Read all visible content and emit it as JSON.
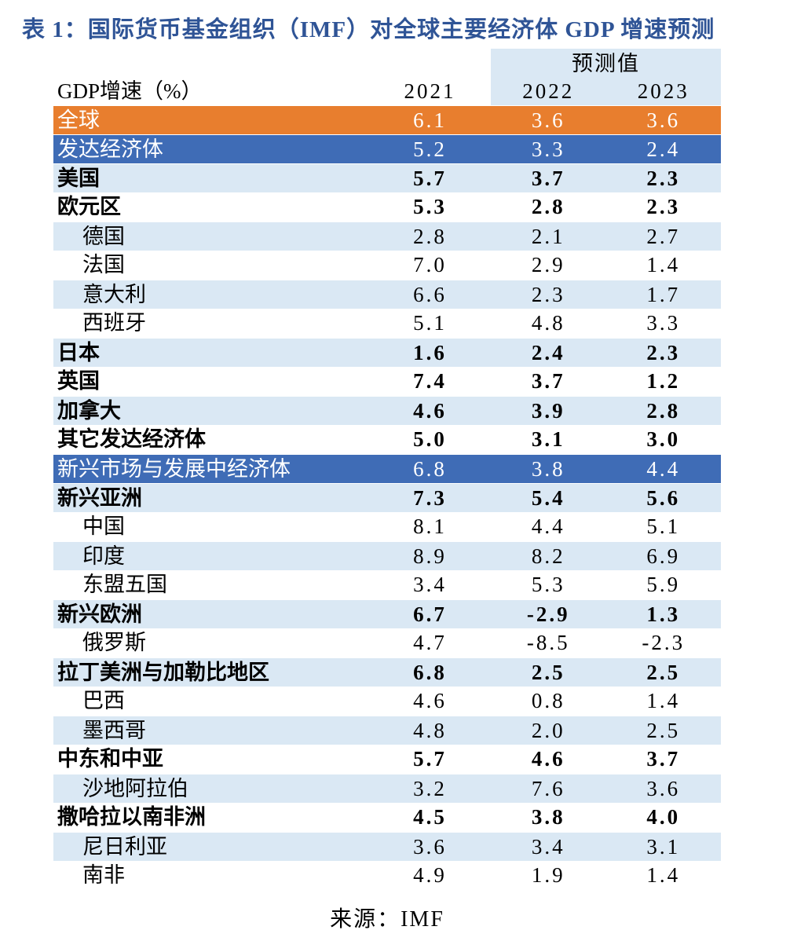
{
  "page": {
    "title": "表 1：国际货币基金组织（IMF）对全球主要经济体 GDP 增速预测",
    "source": "来源：IMF"
  },
  "colors": {
    "orange_band": "#E87E2E",
    "blue_band": "#3F6CB6",
    "light_blue_band": "#DAE8F4",
    "title_text": "#2F5496",
    "band_text_light": "#FFFFFF",
    "body_text": "#000000"
  },
  "chart_data": {
    "type": "table",
    "title": "表 1：国际货币基金组织（IMF）对全球主要经济体 GDP 增速预测",
    "source": "来源：IMF",
    "header": {
      "label_column": "GDP增速（%）",
      "forecast_group_label": "预测值",
      "forecast_years": [
        "2022",
        "2023"
      ],
      "years": [
        "2021",
        "2022",
        "2023"
      ]
    },
    "rows": [
      {
        "label": "全球",
        "values": [
          6.1,
          3.6,
          3.6
        ],
        "band": "orange",
        "bold": false,
        "indent": false
      },
      {
        "label": "发达经济体",
        "values": [
          5.2,
          3.3,
          2.4
        ],
        "band": "blue",
        "bold": false,
        "indent": false
      },
      {
        "label": "美国",
        "values": [
          5.7,
          3.7,
          2.3
        ],
        "band": "alt",
        "bold": true,
        "indent": false
      },
      {
        "label": "欧元区",
        "values": [
          5.3,
          2.8,
          2.3
        ],
        "band": "white",
        "bold": true,
        "indent": false
      },
      {
        "label": "德国",
        "values": [
          2.8,
          2.1,
          2.7
        ],
        "band": "alt",
        "bold": false,
        "indent": true
      },
      {
        "label": "法国",
        "values": [
          7.0,
          2.9,
          1.4
        ],
        "band": "white",
        "bold": false,
        "indent": true
      },
      {
        "label": "意大利",
        "values": [
          6.6,
          2.3,
          1.7
        ],
        "band": "alt",
        "bold": false,
        "indent": true
      },
      {
        "label": "西班牙",
        "values": [
          5.1,
          4.8,
          3.3
        ],
        "band": "white",
        "bold": false,
        "indent": true
      },
      {
        "label": "日本",
        "values": [
          1.6,
          2.4,
          2.3
        ],
        "band": "alt",
        "bold": true,
        "indent": false
      },
      {
        "label": "英国",
        "values": [
          7.4,
          3.7,
          1.2
        ],
        "band": "white",
        "bold": true,
        "indent": false
      },
      {
        "label": "加拿大",
        "values": [
          4.6,
          3.9,
          2.8
        ],
        "band": "alt",
        "bold": true,
        "indent": false
      },
      {
        "label": "其它发达经济体",
        "values": [
          5.0,
          3.1,
          3.0
        ],
        "band": "white",
        "bold": true,
        "indent": false
      },
      {
        "label": "新兴市场与发展中经济体",
        "values": [
          6.8,
          3.8,
          4.4
        ],
        "band": "blue",
        "bold": false,
        "indent": false
      },
      {
        "label": "新兴亚洲",
        "values": [
          7.3,
          5.4,
          5.6
        ],
        "band": "alt",
        "bold": true,
        "indent": false
      },
      {
        "label": "中国",
        "values": [
          8.1,
          4.4,
          5.1
        ],
        "band": "white",
        "bold": false,
        "indent": true
      },
      {
        "label": "印度",
        "values": [
          8.9,
          8.2,
          6.9
        ],
        "band": "alt",
        "bold": false,
        "indent": true
      },
      {
        "label": "东盟五国",
        "values": [
          3.4,
          5.3,
          5.9
        ],
        "band": "white",
        "bold": false,
        "indent": true
      },
      {
        "label": "新兴欧洲",
        "values": [
          6.7,
          -2.9,
          1.3
        ],
        "band": "alt",
        "bold": true,
        "indent": false
      },
      {
        "label": "俄罗斯",
        "values": [
          4.7,
          -8.5,
          -2.3
        ],
        "band": "white",
        "bold": false,
        "indent": true
      },
      {
        "label": "拉丁美洲与加勒比地区",
        "values": [
          6.8,
          2.5,
          2.5
        ],
        "band": "alt",
        "bold": true,
        "indent": false
      },
      {
        "label": "巴西",
        "values": [
          4.6,
          0.8,
          1.4
        ],
        "band": "white",
        "bold": false,
        "indent": true
      },
      {
        "label": "墨西哥",
        "values": [
          4.8,
          2.0,
          2.5
        ],
        "band": "alt",
        "bold": false,
        "indent": true
      },
      {
        "label": "中东和中亚",
        "values": [
          5.7,
          4.6,
          3.7
        ],
        "band": "white",
        "bold": true,
        "indent": false
      },
      {
        "label": "沙地阿拉伯",
        "values": [
          3.2,
          7.6,
          3.6
        ],
        "band": "alt",
        "bold": false,
        "indent": true
      },
      {
        "label": "撒哈拉以南非洲",
        "values": [
          4.5,
          3.8,
          4.0
        ],
        "band": "white",
        "bold": true,
        "indent": false
      },
      {
        "label": "尼日利亚",
        "values": [
          3.6,
          3.4,
          3.1
        ],
        "band": "alt",
        "bold": false,
        "indent": true
      },
      {
        "label": "南非",
        "values": [
          4.9,
          1.9,
          1.4
        ],
        "band": "white",
        "bold": false,
        "indent": true
      }
    ]
  }
}
